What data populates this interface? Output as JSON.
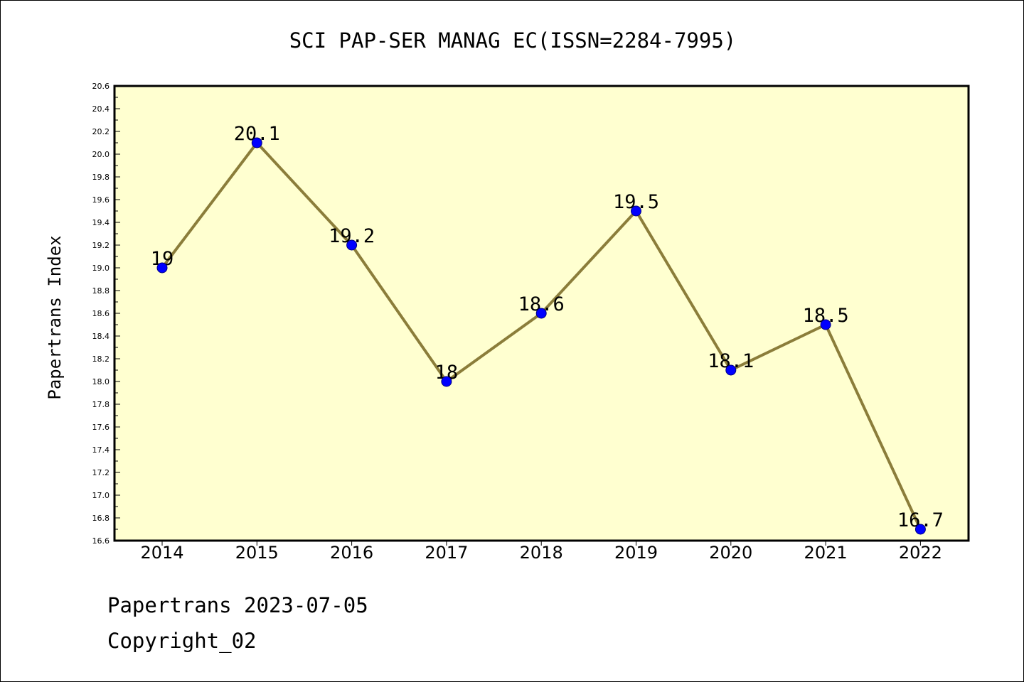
{
  "chart_data": {
    "type": "line",
    "title": "SCI PAP-SER MANAG EC(ISSN=2284-7995)",
    "xlabel": "",
    "ylabel": "Papertrans Index",
    "categories": [
      "2014",
      "2015",
      "2016",
      "2017",
      "2018",
      "2019",
      "2020",
      "2021",
      "2022"
    ],
    "series": [
      {
        "values": [
          19,
          20.1,
          19.2,
          18,
          18.6,
          19.5,
          18.1,
          18.5,
          16.7
        ],
        "labels": [
          "19",
          "20.1",
          "19.2",
          "18",
          "18.6",
          "19.5",
          "18.1",
          "18.5",
          "16.7"
        ]
      }
    ],
    "ylim": [
      16.6,
      20.6
    ],
    "yticks": [
      "16.6",
      "16.8",
      "17.0",
      "17.2",
      "17.4",
      "17.6",
      "17.8",
      "18.0",
      "18.2",
      "18.4",
      "18.6",
      "18.8",
      "19.0",
      "19.2",
      "19.4",
      "19.6",
      "19.8",
      "20.0",
      "20.2",
      "20.4",
      "20.6"
    ],
    "grid": false,
    "colors": {
      "plot_background": "#ffffd0",
      "line": "#8b7d3a",
      "marker": "#0000ff",
      "marker_edge": "#000080"
    }
  },
  "footer": {
    "line1": "Papertrans 2023-07-05",
    "line2": "Copyright_02"
  }
}
